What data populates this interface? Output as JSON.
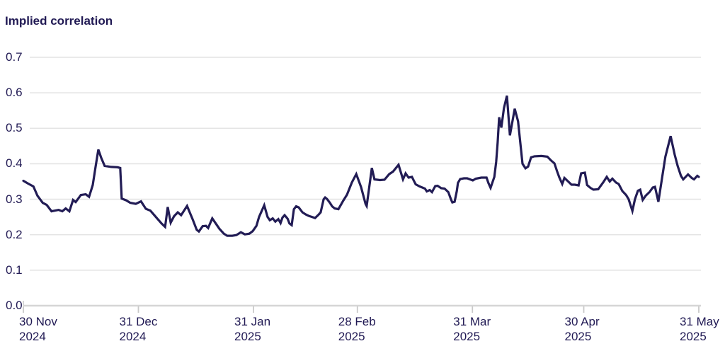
{
  "title": "Implied correlation",
  "colors": {
    "ink": "#211a54",
    "line": "#221c55",
    "gridline": "#e4e4e4",
    "axis": "#d6d6d6",
    "tick": "#c9c9c9",
    "background": "#ffffff"
  },
  "chart_data": {
    "type": "line",
    "title": "Implied correlation",
    "series_name": "Implied correlation",
    "xlabel": "",
    "ylabel": "",
    "grid": "horizontal",
    "legend": "none",
    "ylim": [
      0,
      0.7
    ],
    "xlim_days": [
      0,
      182
    ],
    "x_epoch": "days since 30 Nov 2024",
    "y_ticks": [
      {
        "value": 0.0,
        "label": "0.0"
      },
      {
        "value": 0.1,
        "label": "0.1"
      },
      {
        "value": 0.2,
        "label": "0.2"
      },
      {
        "value": 0.3,
        "label": "0.3"
      },
      {
        "value": 0.4,
        "label": "0.4"
      },
      {
        "value": 0.5,
        "label": "0.5"
      },
      {
        "value": 0.6,
        "label": "0.6"
      },
      {
        "value": 0.7,
        "label": "0.7"
      }
    ],
    "x_ticks": [
      {
        "day": 0,
        "line1": "30 Nov",
        "line2": "2024"
      },
      {
        "day": 31,
        "line1": "31 Dec",
        "line2": "2024"
      },
      {
        "day": 62,
        "line1": "31 Jan",
        "line2": "2025"
      },
      {
        "day": 90,
        "line1": "28 Feb",
        "line2": "2025"
      },
      {
        "day": 121,
        "line1": "31 Mar",
        "line2": "2025"
      },
      {
        "day": 151,
        "line1": "30 Apr",
        "line2": "2025"
      },
      {
        "day": 182,
        "line1": "31 May",
        "line2": "2025"
      }
    ],
    "points": [
      [
        0,
        0.352
      ],
      [
        1.3,
        0.344
      ],
      [
        2.7,
        0.336
      ],
      [
        3.8,
        0.31
      ],
      [
        5.2,
        0.29
      ],
      [
        6.3,
        0.284
      ],
      [
        7.6,
        0.266
      ],
      [
        9.5,
        0.27
      ],
      [
        10.5,
        0.266
      ],
      [
        11.4,
        0.274
      ],
      [
        12.4,
        0.266
      ],
      [
        13.4,
        0.298
      ],
      [
        14.1,
        0.292
      ],
      [
        15.5,
        0.312
      ],
      [
        16.8,
        0.314
      ],
      [
        17.7,
        0.307
      ],
      [
        18.7,
        0.34
      ],
      [
        19.5,
        0.394
      ],
      [
        20.2,
        0.44
      ],
      [
        21.0,
        0.416
      ],
      [
        21.9,
        0.394
      ],
      [
        23.7,
        0.391
      ],
      [
        25.4,
        0.39
      ],
      [
        26.1,
        0.388
      ],
      [
        26.5,
        0.302
      ],
      [
        27.7,
        0.297
      ],
      [
        28.8,
        0.29
      ],
      [
        30.3,
        0.287
      ],
      [
        31.7,
        0.294
      ],
      [
        33.0,
        0.273
      ],
      [
        34.2,
        0.268
      ],
      [
        35.7,
        0.25
      ],
      [
        37.2,
        0.232
      ],
      [
        38.2,
        0.222
      ],
      [
        38.9,
        0.278
      ],
      [
        39.7,
        0.234
      ],
      [
        40.6,
        0.252
      ],
      [
        41.6,
        0.263
      ],
      [
        42.5,
        0.255
      ],
      [
        44.1,
        0.281
      ],
      [
        45.6,
        0.244
      ],
      [
        46.7,
        0.214
      ],
      [
        47.3,
        0.209
      ],
      [
        48.3,
        0.224
      ],
      [
        49.2,
        0.225
      ],
      [
        49.8,
        0.219
      ],
      [
        50.9,
        0.246
      ],
      [
        52.8,
        0.217
      ],
      [
        54.0,
        0.203
      ],
      [
        54.9,
        0.197
      ],
      [
        56.3,
        0.197
      ],
      [
        57.4,
        0.199
      ],
      [
        58.6,
        0.207
      ],
      [
        59.7,
        0.201
      ],
      [
        60.9,
        0.203
      ],
      [
        61.8,
        0.21
      ],
      [
        62.8,
        0.225
      ],
      [
        63.5,
        0.25
      ],
      [
        64.9,
        0.283
      ],
      [
        65.8,
        0.25
      ],
      [
        66.4,
        0.241
      ],
      [
        67.2,
        0.246
      ],
      [
        67.9,
        0.237
      ],
      [
        68.7,
        0.244
      ],
      [
        69.3,
        0.233
      ],
      [
        69.8,
        0.248
      ],
      [
        70.4,
        0.255
      ],
      [
        71.2,
        0.245
      ],
      [
        71.7,
        0.232
      ],
      [
        72.3,
        0.227
      ],
      [
        72.9,
        0.272
      ],
      [
        73.5,
        0.28
      ],
      [
        74.2,
        0.277
      ],
      [
        75.2,
        0.263
      ],
      [
        76.1,
        0.257
      ],
      [
        76.9,
        0.253
      ],
      [
        77.8,
        0.25
      ],
      [
        78.6,
        0.247
      ],
      [
        79.6,
        0.257
      ],
      [
        80.1,
        0.263
      ],
      [
        80.9,
        0.3
      ],
      [
        81.3,
        0.305
      ],
      [
        81.8,
        0.301
      ],
      [
        82.6,
        0.29
      ],
      [
        83.2,
        0.28
      ],
      [
        83.9,
        0.274
      ],
      [
        84.9,
        0.272
      ],
      [
        86.2,
        0.296
      ],
      [
        87.2,
        0.313
      ],
      [
        88.5,
        0.347
      ],
      [
        89.7,
        0.371
      ],
      [
        91.0,
        0.334
      ],
      [
        92.2,
        0.287
      ],
      [
        92.5,
        0.281
      ],
      [
        93.9,
        0.388
      ],
      [
        94.6,
        0.356
      ],
      [
        96.1,
        0.354
      ],
      [
        97.3,
        0.355
      ],
      [
        98.6,
        0.371
      ],
      [
        99.6,
        0.378
      ],
      [
        101.1,
        0.397
      ],
      [
        102.3,
        0.356
      ],
      [
        103.0,
        0.373
      ],
      [
        103.8,
        0.361
      ],
      [
        104.7,
        0.363
      ],
      [
        105.7,
        0.342
      ],
      [
        106.8,
        0.336
      ],
      [
        108.2,
        0.33
      ],
      [
        108.7,
        0.322
      ],
      [
        109.5,
        0.326
      ],
      [
        110.1,
        0.32
      ],
      [
        111.0,
        0.337
      ],
      [
        111.6,
        0.338
      ],
      [
        112.6,
        0.331
      ],
      [
        113.5,
        0.33
      ],
      [
        114.5,
        0.32
      ],
      [
        115.2,
        0.3
      ],
      [
        115.6,
        0.291
      ],
      [
        116.2,
        0.293
      ],
      [
        116.8,
        0.323
      ],
      [
        117.1,
        0.346
      ],
      [
        117.7,
        0.357
      ],
      [
        118.7,
        0.359
      ],
      [
        119.6,
        0.359
      ],
      [
        121.1,
        0.353
      ],
      [
        121.9,
        0.358
      ],
      [
        123.4,
        0.361
      ],
      [
        124.8,
        0.361
      ],
      [
        125.3,
        0.346
      ],
      [
        125.9,
        0.332
      ],
      [
        126.9,
        0.363
      ],
      [
        127.4,
        0.405
      ],
      [
        127.8,
        0.46
      ],
      [
        128.2,
        0.531
      ],
      [
        128.8,
        0.502
      ],
      [
        129.5,
        0.557
      ],
      [
        130.3,
        0.592
      ],
      [
        131.1,
        0.48
      ],
      [
        132.4,
        0.555
      ],
      [
        133.3,
        0.52
      ],
      [
        134.5,
        0.4
      ],
      [
        135.3,
        0.387
      ],
      [
        136.0,
        0.392
      ],
      [
        136.8,
        0.418
      ],
      [
        137.7,
        0.421
      ],
      [
        139.6,
        0.422
      ],
      [
        141.2,
        0.42
      ],
      [
        142.1,
        0.41
      ],
      [
        143.1,
        0.401
      ],
      [
        143.8,
        0.379
      ],
      [
        144.4,
        0.362
      ],
      [
        145.2,
        0.343
      ],
      [
        145.8,
        0.36
      ],
      [
        146.7,
        0.351
      ],
      [
        147.7,
        0.341
      ],
      [
        148.6,
        0.341
      ],
      [
        149.6,
        0.339
      ],
      [
        150.3,
        0.373
      ],
      [
        151.3,
        0.375
      ],
      [
        151.9,
        0.34
      ],
      [
        152.8,
        0.332
      ],
      [
        153.6,
        0.327
      ],
      [
        154.9,
        0.328
      ],
      [
        156.2,
        0.347
      ],
      [
        157.2,
        0.363
      ],
      [
        158.0,
        0.35
      ],
      [
        158.7,
        0.358
      ],
      [
        159.7,
        0.347
      ],
      [
        160.4,
        0.343
      ],
      [
        161.4,
        0.323
      ],
      [
        162.4,
        0.312
      ],
      [
        163.1,
        0.3
      ],
      [
        164.1,
        0.267
      ],
      [
        164.8,
        0.3
      ],
      [
        165.6,
        0.324
      ],
      [
        166.2,
        0.327
      ],
      [
        166.9,
        0.298
      ],
      [
        167.7,
        0.31
      ],
      [
        168.7,
        0.32
      ],
      [
        169.6,
        0.333
      ],
      [
        170.2,
        0.335
      ],
      [
        171.1,
        0.293
      ],
      [
        172.1,
        0.36
      ],
      [
        173.0,
        0.42
      ],
      [
        174.4,
        0.478
      ],
      [
        175.5,
        0.426
      ],
      [
        176.3,
        0.394
      ],
      [
        177.2,
        0.366
      ],
      [
        177.8,
        0.356
      ],
      [
        179.1,
        0.37
      ],
      [
        180.1,
        0.36
      ],
      [
        180.7,
        0.356
      ],
      [
        181.6,
        0.366
      ],
      [
        182.0,
        0.363
      ]
    ]
  }
}
